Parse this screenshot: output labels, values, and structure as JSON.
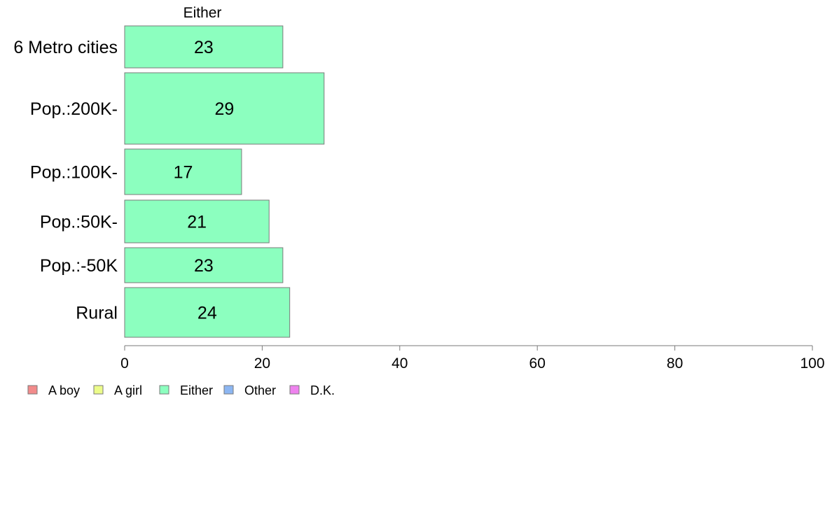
{
  "chart_data": {
    "type": "bar",
    "orientation": "horizontal",
    "panel_title": "Either",
    "categories": [
      "6 Metro cities",
      "Pop.:200K-",
      "Pop.:100K-",
      "Pop.:50K-",
      "Pop.:-50K",
      "Rural"
    ],
    "series": [
      {
        "name": "Either",
        "values": [
          23,
          29,
          17,
          21,
          23,
          24
        ]
      }
    ],
    "value_labels": [
      "23",
      "29",
      "17",
      "21",
      "23",
      "24"
    ],
    "xlim": [
      0,
      100
    ],
    "xticks": [
      0,
      20,
      40,
      60,
      80,
      100
    ],
    "xtick_labels": [
      "0",
      "20",
      "40",
      "60",
      "80",
      "100"
    ],
    "grid": false,
    "legend": {
      "position": "bottom-left",
      "entries": [
        {
          "label": "A boy",
          "color": "#f28b8b"
        },
        {
          "label": "A girl",
          "color": "#ecfc8a"
        },
        {
          "label": "Either",
          "color": "#8cffbf"
        },
        {
          "label": "Other",
          "color": "#8cb6f2"
        },
        {
          "label": "D.K.",
          "color": "#ee82ee"
        }
      ]
    },
    "bar_color": "#8cffbf",
    "bar_stroke": "#7a7a7a"
  }
}
